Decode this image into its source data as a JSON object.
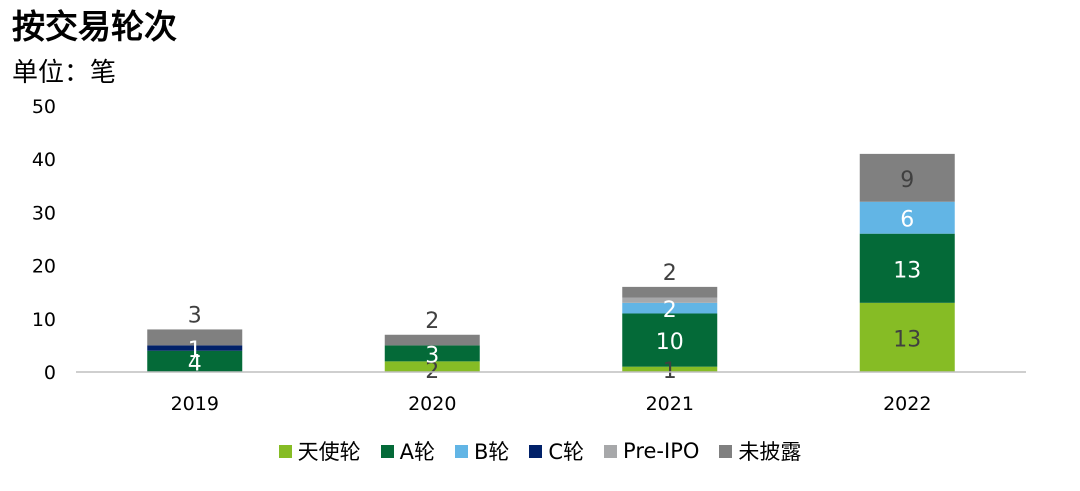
{
  "title": "按交易轮次",
  "subtitle": "单位：笔",
  "chart_data": {
    "type": "bar",
    "stacked": true,
    "categories": [
      "2019",
      "2020",
      "2021",
      "2022"
    ],
    "ylim": [
      0,
      50
    ],
    "yticks": [
      0,
      10,
      20,
      30,
      40,
      50
    ],
    "grid": false,
    "legend_position": "bottom",
    "series": [
      {
        "name": "天使轮",
        "color": "#86BC25",
        "values": [
          0,
          2,
          1,
          13
        ],
        "labels": [
          "",
          "2",
          "1",
          "13"
        ],
        "label_color": "#404040"
      },
      {
        "name": "A轮",
        "color": "#046A38",
        "values": [
          4,
          3,
          10,
          13
        ],
        "labels": [
          "4",
          "3",
          "10",
          "13"
        ],
        "label_color": "#ffffff"
      },
      {
        "name": "B轮",
        "color": "#62B5E5",
        "values": [
          0,
          0,
          2,
          6
        ],
        "labels": [
          "",
          "",
          "2",
          "6"
        ],
        "label_color": "#ffffff"
      },
      {
        "name": "C轮",
        "color": "#012169",
        "values": [
          1,
          0,
          0,
          0
        ],
        "labels": [
          "1",
          "",
          "",
          ""
        ],
        "label_color": "#ffffff"
      },
      {
        "name": "Pre-IPO",
        "color": "#A7A8AA",
        "values": [
          0,
          0,
          1,
          0
        ],
        "labels": [
          "",
          "",
          "",
          ""
        ],
        "label_color": "#404040"
      },
      {
        "name": "未披露",
        "color": "#808080",
        "values": [
          3,
          2,
          2,
          9
        ],
        "labels": [
          "3",
          "2",
          "2",
          "9"
        ],
        "label_color": "#404040"
      }
    ]
  }
}
